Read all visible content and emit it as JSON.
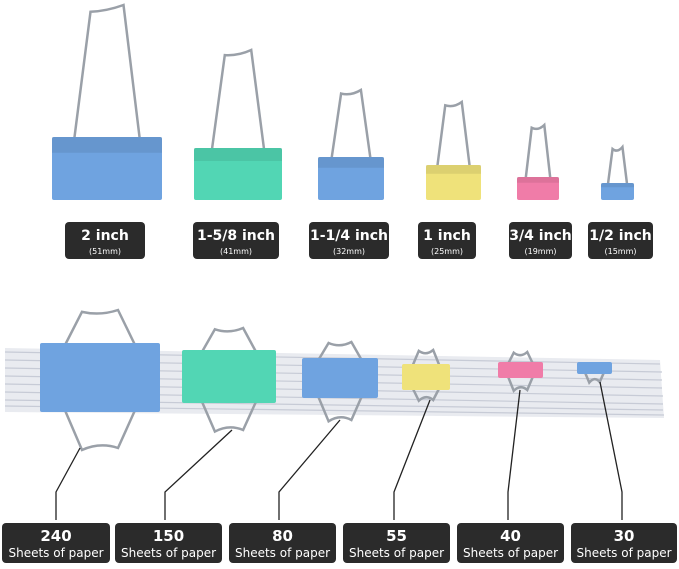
{
  "sizes": [
    {
      "label": "2 inch",
      "metric": "(51mm)"
    },
    {
      "label": "1-5/8 inch",
      "metric": "(41mm)"
    },
    {
      "label": "1-1/4 inch",
      "metric": "(32mm)"
    },
    {
      "label": "1 inch",
      "metric": "(25mm)"
    },
    {
      "label": "3/4 inch",
      "metric": "(19mm)"
    },
    {
      "label": "1/2 inch",
      "metric": "(15mm)"
    }
  ],
  "capacity": [
    {
      "sheets": "240",
      "unit": "Sheets of paper"
    },
    {
      "sheets": "150",
      "unit": "Sheets of paper"
    },
    {
      "sheets": "80",
      "unit": "Sheets of paper"
    },
    {
      "sheets": "55",
      "unit": "Sheets of paper"
    },
    {
      "sheets": "40",
      "unit": "Sheets of paper"
    },
    {
      "sheets": "30",
      "unit": "Sheets of paper"
    }
  ]
}
